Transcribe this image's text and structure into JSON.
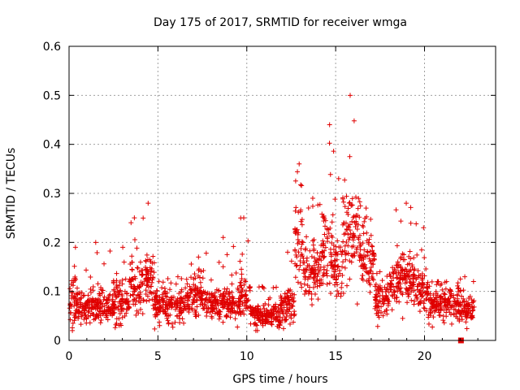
{
  "chart_data": {
    "type": "scatter",
    "title": "Day 175 of 2017, SRMTID for receiver wmga",
    "xlabel": "GPS time / hours",
    "ylabel": "SRMTID / TECUs",
    "xlim": [
      0,
      24
    ],
    "ylim": [
      0,
      0.6
    ],
    "xticks": [
      0,
      5,
      10,
      15,
      20
    ],
    "xtick_labels": [
      "0",
      "5",
      "10",
      "15",
      "20"
    ],
    "yticks": [
      0,
      0.1,
      0.2,
      0.3,
      0.4,
      0.5,
      0.6
    ],
    "ytick_labels": [
      "0",
      "0.1",
      "0.2",
      "0.3",
      "0.4",
      "0.5",
      "0.6"
    ],
    "grid": true,
    "marker": "plus",
    "color": "#e00000",
    "series": [
      {
        "name": "SRMTID",
        "profile": [
          {
            "x_range": [
              0.0,
              0.6
            ],
            "base": 0.075,
            "spread": 0.045,
            "peak": 0.19
          },
          {
            "x_range": [
              0.6,
              2.5
            ],
            "base": 0.07,
            "spread": 0.03,
            "peak": 0.2
          },
          {
            "x_range": [
              2.5,
              3.4
            ],
            "base": 0.08,
            "spread": 0.035,
            "peak": 0.19
          },
          {
            "x_range": [
              3.4,
              4.2
            ],
            "base": 0.11,
            "spread": 0.04,
            "peak": 0.25
          },
          {
            "x_range": [
              4.2,
              4.8
            ],
            "base": 0.12,
            "spread": 0.05,
            "peak": 0.28
          },
          {
            "x_range": [
              4.8,
              6.8
            ],
            "base": 0.07,
            "spread": 0.03,
            "peak": 0.13
          },
          {
            "x_range": [
              6.8,
              7.6
            ],
            "base": 0.09,
            "spread": 0.035,
            "peak": 0.17
          },
          {
            "x_range": [
              7.6,
              9.6
            ],
            "base": 0.075,
            "spread": 0.03,
            "peak": 0.21
          },
          {
            "x_range": [
              9.6,
              10.2
            ],
            "base": 0.09,
            "spread": 0.04,
            "peak": 0.25
          },
          {
            "x_range": [
              10.2,
              11.9
            ],
            "base": 0.05,
            "spread": 0.02,
            "peak": 0.11
          },
          {
            "x_range": [
              11.9,
              12.7
            ],
            "base": 0.075,
            "spread": 0.03,
            "peak": 0.18
          },
          {
            "x_range": [
              12.7,
              13.2
            ],
            "base": 0.2,
            "spread": 0.07,
            "peak": 0.36
          },
          {
            "x_range": [
              13.2,
              14.2
            ],
            "base": 0.14,
            "spread": 0.05,
            "peak": 0.29
          },
          {
            "x_range": [
              14.2,
              14.9
            ],
            "base": 0.18,
            "spread": 0.07,
            "peak": 0.44
          },
          {
            "x_range": [
              14.9,
              15.4
            ],
            "base": 0.15,
            "spread": 0.05,
            "peak": 0.33
          },
          {
            "x_range": [
              15.4,
              16.4
            ],
            "base": 0.22,
            "spread": 0.08,
            "peak": 0.5
          },
          {
            "x_range": [
              16.4,
              17.2
            ],
            "base": 0.17,
            "spread": 0.05,
            "peak": 0.27
          },
          {
            "x_range": [
              17.2,
              18.0
            ],
            "base": 0.08,
            "spread": 0.03,
            "peak": 0.14
          },
          {
            "x_range": [
              18.0,
              19.6
            ],
            "base": 0.12,
            "spread": 0.045,
            "peak": 0.28
          },
          {
            "x_range": [
              19.6,
              20.2
            ],
            "base": 0.1,
            "spread": 0.04,
            "peak": 0.23
          },
          {
            "x_range": [
              20.2,
              22.0
            ],
            "base": 0.075,
            "spread": 0.03,
            "peak": 0.12
          },
          {
            "x_range": [
              22.0,
              22.8
            ],
            "base": 0.06,
            "spread": 0.025,
            "peak": 0.13
          }
        ],
        "n_points": 2200
      }
    ],
    "extra_markers": [
      {
        "x": 22.05,
        "y": 0.0,
        "shape": "square",
        "color": "#e00000"
      }
    ]
  }
}
